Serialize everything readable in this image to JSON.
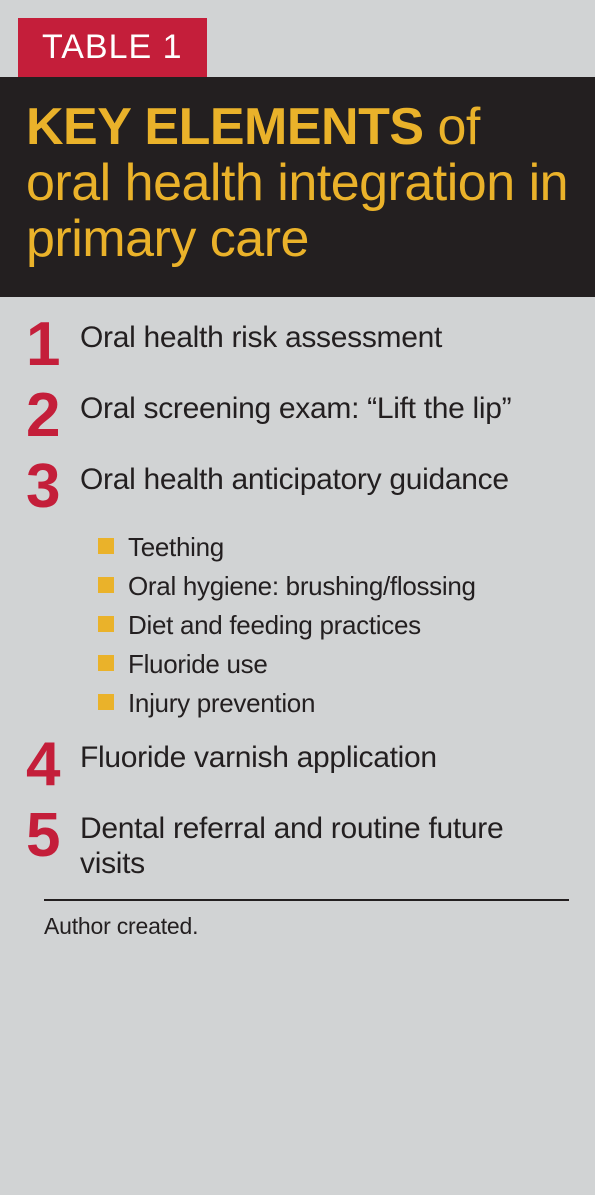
{
  "badge": "TABLE 1",
  "title": {
    "bold": "KEY ELEMENTS",
    "rest": " of oral health integration in primary care"
  },
  "colors": {
    "badge_bg": "#c41e3a",
    "badge_fg": "#ffffff",
    "title_bg": "#231f20",
    "title_fg": "#eab22a",
    "page_bg": "#d1d3d4",
    "number_fg": "#c41e3a",
    "body_fg": "#231f20",
    "bullet_fg": "#eab22a",
    "rule": "#231f20"
  },
  "typography": {
    "badge_size": 34,
    "title_size": 52,
    "number_size": 62,
    "item_size": 30,
    "sub_size": 26,
    "footnote_size": 23
  },
  "items": [
    {
      "n": "1",
      "text": "Oral health risk assessment"
    },
    {
      "n": "2",
      "text": "Oral screening exam: “Lift the lip”"
    },
    {
      "n": "3",
      "text": "Oral health anticipatory guidance",
      "sub": [
        "Teething",
        "Oral hygiene: brushing/flossing",
        "Diet and feeding practices",
        "Fluoride use",
        "Injury prevention"
      ]
    },
    {
      "n": "4",
      "text": "Fluoride varnish application"
    },
    {
      "n": "5",
      "text": "Dental referral and routine future visits"
    }
  ],
  "footnote": "Author created."
}
